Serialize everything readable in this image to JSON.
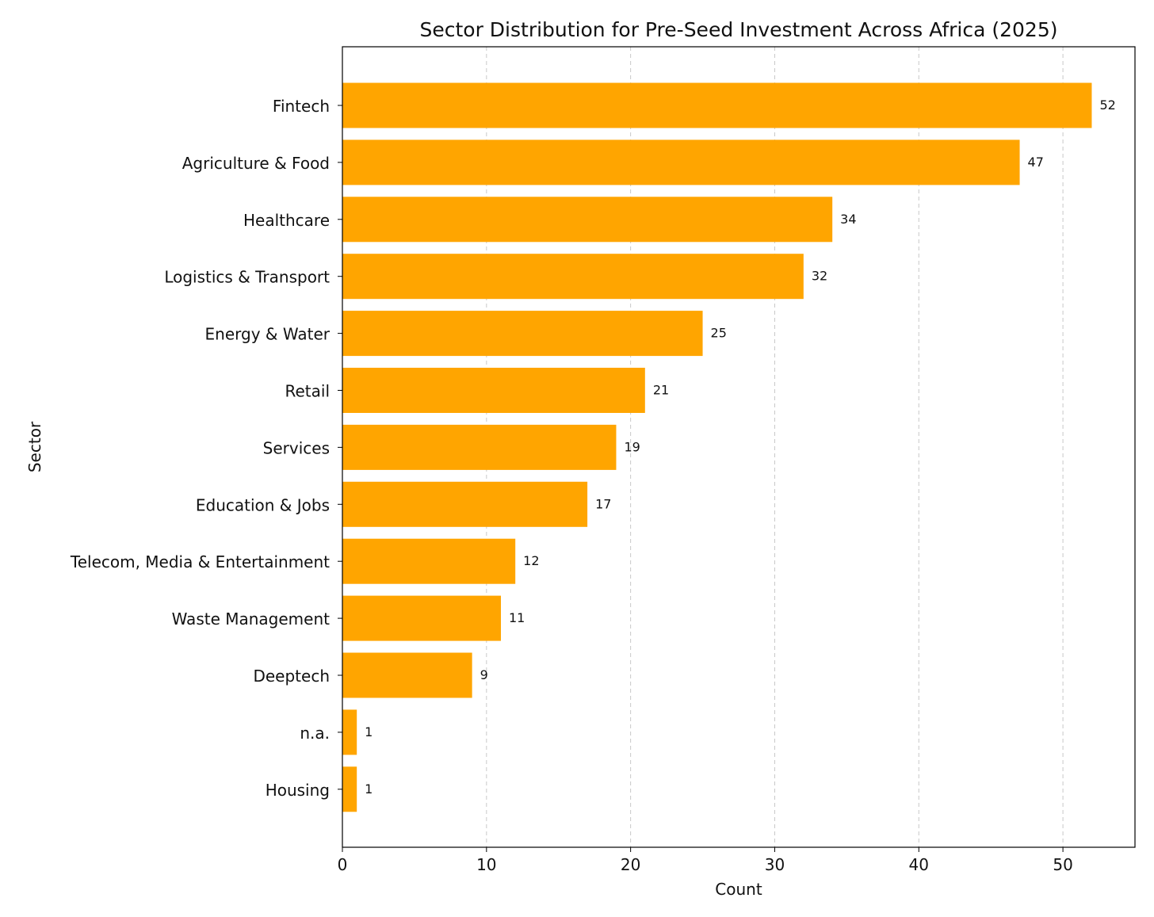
{
  "chart_data": {
    "type": "bar",
    "orientation": "horizontal",
    "title": "Sector Distribution for Pre-Seed Investment Across Africa (2025)",
    "xlabel": "Count",
    "ylabel": "Sector",
    "xlim": [
      0,
      55
    ],
    "xticks": [
      0,
      10,
      20,
      30,
      40,
      50
    ],
    "grid": "x-dashed",
    "bar_color": "#ffa500",
    "categories": [
      "Fintech",
      "Agriculture & Food",
      "Healthcare",
      "Logistics & Transport",
      "Energy & Water",
      "Retail",
      "Services",
      "Education & Jobs",
      "Telecom, Media & Entertainment",
      "Waste Management",
      "Deeptech",
      "n.a.",
      "Housing"
    ],
    "values": [
      52,
      47,
      34,
      32,
      25,
      21,
      19,
      17,
      12,
      11,
      9,
      1,
      1
    ]
  }
}
